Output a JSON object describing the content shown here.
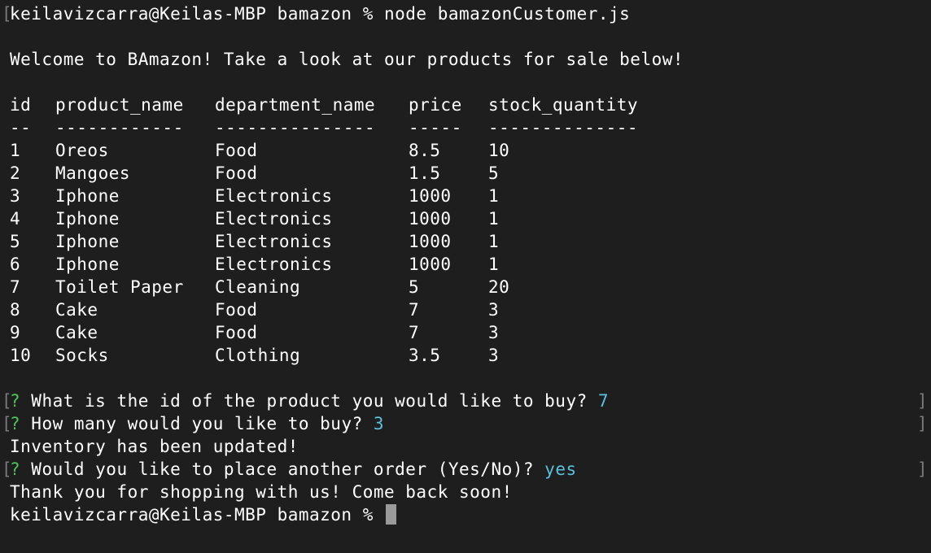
{
  "prompt_line": {
    "command_line": "keilavizcarra@Keilas-MBP bamazon % node bamazonCustomer.js"
  },
  "welcome": "Welcome to BAmazon! Take a look at our products for sale below!",
  "table": {
    "headers": [
      "id",
      "product_name",
      "department_name",
      "price",
      "stock_quantity"
    ],
    "separators": [
      "--",
      "------------",
      "---------------",
      "-----",
      "--------------"
    ],
    "rows": [
      [
        "1",
        "Oreos",
        "Food",
        "8.5",
        "10"
      ],
      [
        "2",
        "Mangoes",
        "Food",
        "1.5",
        "5"
      ],
      [
        "3",
        "Iphone",
        "Electronics",
        "1000",
        "1"
      ],
      [
        "4",
        "Iphone",
        "Electronics",
        "1000",
        "1"
      ],
      [
        "5",
        "Iphone",
        "Electronics",
        "1000",
        "1"
      ],
      [
        "6",
        "Iphone",
        "Electronics",
        "1000",
        "1"
      ],
      [
        "7",
        "Toilet Paper",
        "Cleaning",
        "5",
        "20"
      ],
      [
        "8",
        "Cake",
        "Food",
        "7",
        "3"
      ],
      [
        "9",
        "Cake",
        "Food",
        "7",
        "3"
      ],
      [
        "10",
        "Socks",
        "Clothing",
        "3.5",
        "3"
      ]
    ]
  },
  "questions": [
    {
      "mark": "?",
      "text": " What is the id of the product you would like to buy? ",
      "answer": "7"
    },
    {
      "mark": "?",
      "text": " How many would you like to buy? ",
      "answer": "3"
    },
    {
      "mark": "?",
      "text": " Would you like to place another order (Yes/No)? ",
      "answer": "yes"
    }
  ],
  "messages": {
    "inventory_updated": "Inventory has been updated!",
    "thank_you": "Thank you for shopping with us! Come back soon!"
  },
  "final_prompt": "keilavizcarra@Keilas-MBP bamazon % ",
  "colors": {
    "background": "#1e1e1e",
    "text": "#ffffff",
    "question_mark": "#4fc35a",
    "answer": "#5bc0de"
  }
}
